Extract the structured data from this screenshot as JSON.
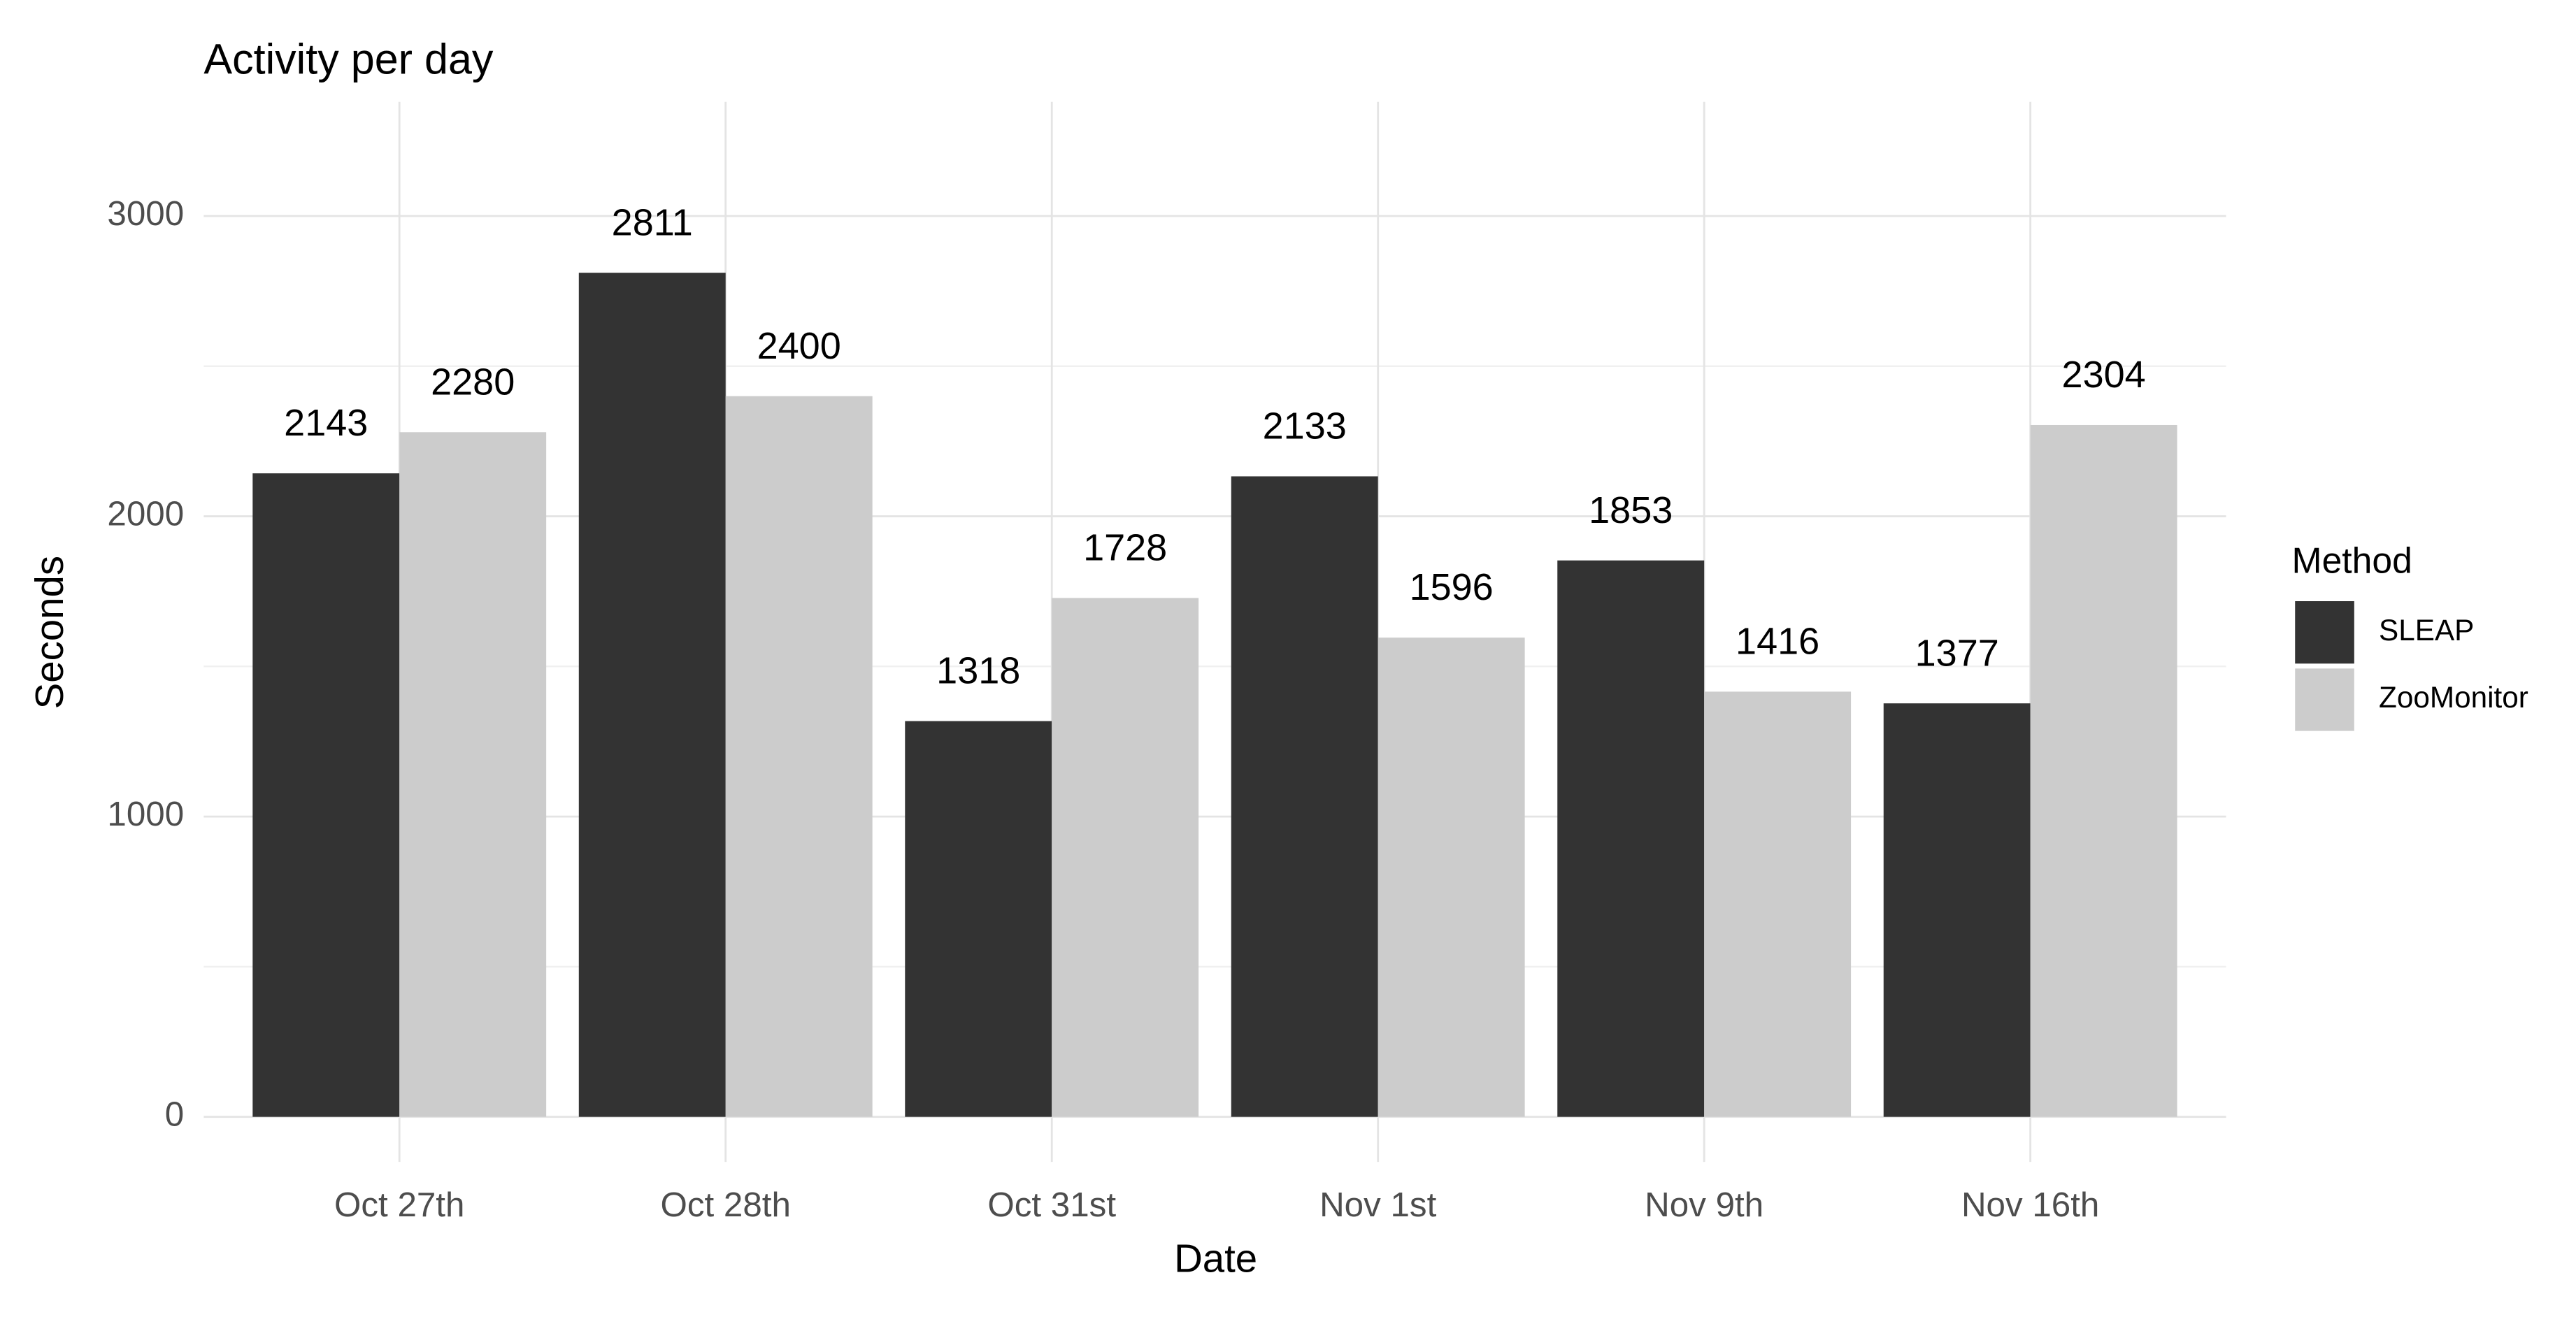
{
  "chart_data": {
    "type": "bar",
    "title": "Activity per day",
    "x_label": "Date",
    "y_label": "Seconds",
    "categories": [
      "Oct 27th",
      "Oct 28th",
      "Oct 31st",
      "Nov 1st",
      "Nov 9th",
      "Nov 16th"
    ],
    "series": [
      {
        "name": "SLEAP",
        "color": "#333333",
        "values": [
          2143,
          2811,
          1318,
          2133,
          1853,
          1377
        ]
      },
      {
        "name": "ZooMonitor",
        "color": "#cccccc",
        "values": [
          2280,
          2400,
          1728,
          1596,
          1416,
          2304
        ]
      }
    ],
    "legend_title": "Method",
    "legend_position": "right",
    "ylim": [
      -150,
      3380
    ],
    "yticks": [
      0,
      1000,
      2000,
      3000
    ],
    "minor_yticks": [
      500,
      1500,
      2500
    ],
    "grid": true
  }
}
